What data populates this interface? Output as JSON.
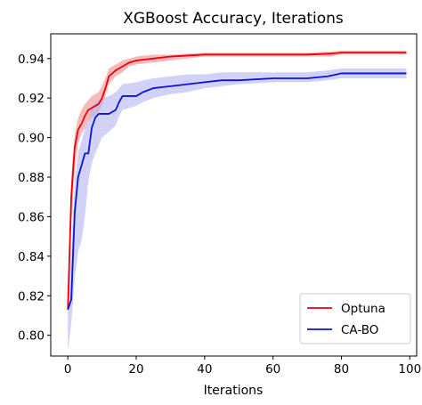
{
  "chart_data": {
    "type": "line",
    "title": "XGBoost Accuracy, Iterations",
    "xlabel": "Iterations",
    "ylabel": "",
    "xlim": [
      -5,
      102
    ],
    "ylim": [
      0.7895,
      0.9525
    ],
    "xticks": [
      0,
      20,
      40,
      60,
      80,
      100
    ],
    "yticks": [
      0.8,
      0.82,
      0.84,
      0.86,
      0.88,
      0.9,
      0.92,
      0.94
    ],
    "ytick_labels": [
      "0.80",
      "0.82",
      "0.84",
      "0.86",
      "0.88",
      "0.90",
      "0.92",
      "0.94"
    ],
    "grid": false,
    "legend_position": "lower-right",
    "series": [
      {
        "name": "Optuna",
        "color": "#e8000b",
        "band_color": "#f08c8c",
        "x": [
          0,
          1,
          2,
          3,
          4,
          5,
          6,
          7,
          8,
          9,
          10,
          11,
          12,
          14,
          16,
          18,
          20,
          25,
          30,
          35,
          40,
          50,
          60,
          70,
          77,
          80,
          90,
          99
        ],
        "y": [
          0.813,
          0.87,
          0.895,
          0.904,
          0.907,
          0.911,
          0.914,
          0.915,
          0.916,
          0.917,
          0.92,
          0.925,
          0.931,
          0.934,
          0.936,
          0.938,
          0.939,
          0.94,
          0.941,
          0.9415,
          0.942,
          0.942,
          0.942,
          0.942,
          0.9425,
          0.943,
          0.943,
          0.943
        ],
        "lower": [
          0.81,
          0.855,
          0.883,
          0.897,
          0.902,
          0.905,
          0.908,
          0.91,
          0.911,
          0.913,
          0.916,
          0.921,
          0.927,
          0.931,
          0.933,
          0.936,
          0.937,
          0.938,
          0.939,
          0.94,
          0.941,
          0.941,
          0.941,
          0.941,
          0.941,
          0.942,
          0.942,
          0.942
        ],
        "upper": [
          0.816,
          0.88,
          0.902,
          0.91,
          0.914,
          0.917,
          0.919,
          0.921,
          0.922,
          0.923,
          0.926,
          0.93,
          0.935,
          0.937,
          0.939,
          0.94,
          0.941,
          0.942,
          0.942,
          0.9425,
          0.943,
          0.943,
          0.943,
          0.943,
          0.9435,
          0.944,
          0.944,
          0.944
        ]
      },
      {
        "name": "CA-BO",
        "color": "#0a14d6",
        "band_color": "#b4b4f4",
        "x": [
          0,
          1,
          2,
          3,
          4,
          5,
          6,
          7,
          8,
          9,
          10,
          12,
          14,
          15,
          16,
          20,
          22,
          25,
          30,
          35,
          40,
          45,
          50,
          60,
          70,
          76,
          80,
          90,
          99
        ],
        "y": [
          0.813,
          0.818,
          0.862,
          0.88,
          0.886,
          0.892,
          0.892,
          0.905,
          0.91,
          0.912,
          0.912,
          0.912,
          0.914,
          0.918,
          0.921,
          0.921,
          0.923,
          0.925,
          0.926,
          0.927,
          0.928,
          0.929,
          0.929,
          0.93,
          0.93,
          0.931,
          0.9325,
          0.9325,
          0.9325
        ],
        "lower": [
          0.792,
          0.806,
          0.828,
          0.842,
          0.848,
          0.86,
          0.878,
          0.887,
          0.892,
          0.896,
          0.9,
          0.903,
          0.906,
          0.911,
          0.914,
          0.916,
          0.918,
          0.92,
          0.922,
          0.923,
          0.925,
          0.926,
          0.927,
          0.928,
          0.928,
          0.929,
          0.93,
          0.93,
          0.93
        ],
        "upper": [
          0.82,
          0.84,
          0.878,
          0.893,
          0.898,
          0.905,
          0.908,
          0.915,
          0.918,
          0.919,
          0.92,
          0.921,
          0.923,
          0.925,
          0.927,
          0.928,
          0.929,
          0.93,
          0.931,
          0.932,
          0.932,
          0.933,
          0.933,
          0.933,
          0.933,
          0.934,
          0.935,
          0.935,
          0.935
        ]
      }
    ]
  }
}
